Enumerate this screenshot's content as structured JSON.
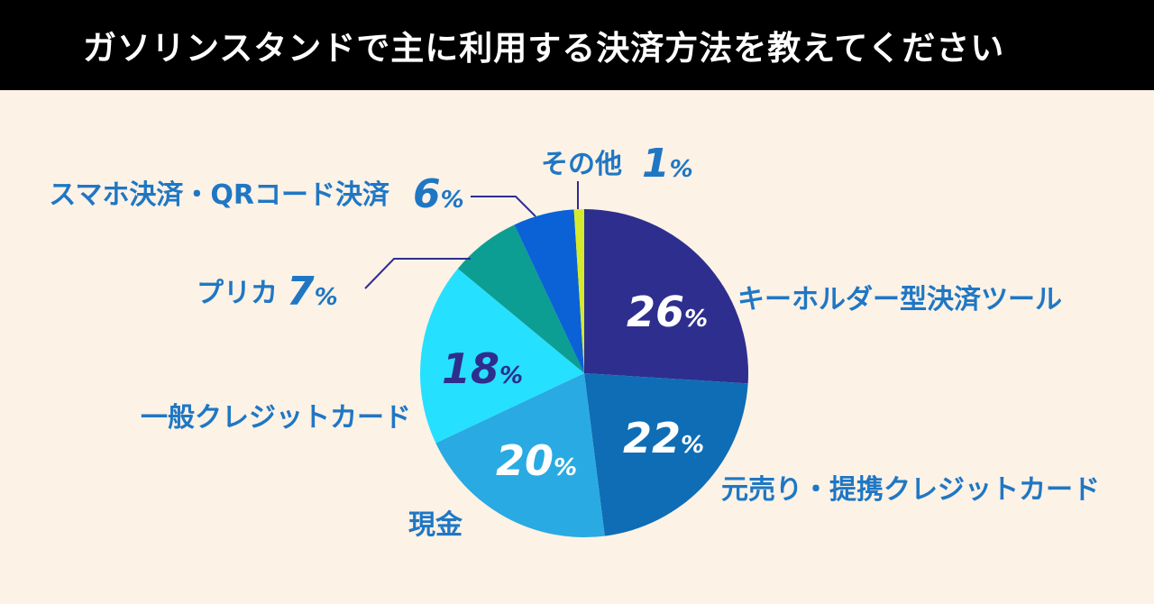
{
  "title": "ガソリンスタンドで主に利用する決済方法を教えてください",
  "chart_data": {
    "type": "pie",
    "title": "ガソリンスタンドで主に利用する決済方法を教えてください",
    "slices": [
      {
        "label": "キーホルダー型決済ツール",
        "value": 26,
        "color": "#2e2e8f"
      },
      {
        "label": "元売り・提携クレジットカード",
        "value": 22,
        "color": "#0f6db5"
      },
      {
        "label": "現金",
        "value": 20,
        "color": "#29aae2"
      },
      {
        "label": "一般クレジットカード",
        "value": 18,
        "color": "#25e0ff"
      },
      {
        "label": "プリカ",
        "value": 7,
        "color": "#0c9e92"
      },
      {
        "label": "スマホ決済・QRコード決済",
        "value": 6,
        "color": "#0a62d6"
      },
      {
        "label": "その他",
        "value": 1,
        "color": "#d6ea2c"
      }
    ],
    "unit": "%",
    "start_angle": "12 o'clock",
    "direction": "clockwise",
    "label_color": "#1f77c4"
  }
}
